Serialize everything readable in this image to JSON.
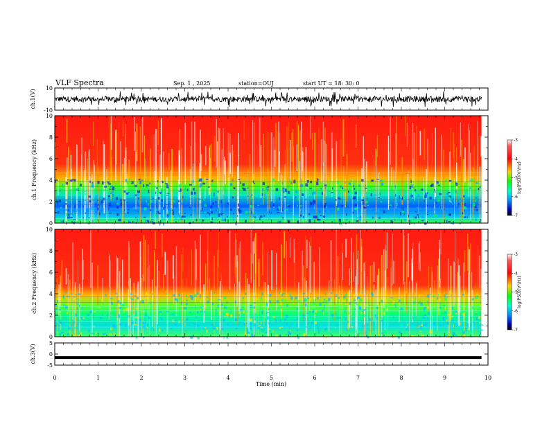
{
  "header": {
    "title": "VLF Spectra",
    "date": "Sep. 1 , 2025",
    "station": "station=OUJ",
    "start": "start UT = 18: 30: 0"
  },
  "chart_data": [
    {
      "id": "ch1-waveform",
      "type": "line",
      "ylabel": "ch.1(V)",
      "ylim": [
        -10,
        10
      ],
      "yticks": [
        "10",
        "-10"
      ]
    },
    {
      "id": "ch1-spectrogram",
      "type": "heatmap",
      "ylabel": "ch.1 Frequency (kHz)",
      "ylim": [
        0,
        10
      ],
      "yticks": [
        "0",
        "2",
        "4",
        "6",
        "8",
        "10"
      ],
      "colorbar": {
        "label": "log(PSD)(V²/Hz)",
        "ticks": [
          "-3",
          "-4",
          "-5",
          "-6",
          "-7"
        ],
        "range": [
          -7,
          -3
        ]
      }
    },
    {
      "id": "ch2-spectrogram",
      "type": "heatmap",
      "ylabel": "ch.2 Frequency (kHz)",
      "ylim": [
        0,
        10
      ],
      "yticks": [
        "0",
        "2",
        "4",
        "6",
        "8",
        "10"
      ],
      "colorbar": {
        "label": "log(PSD)(V²/Hz)",
        "ticks": [
          "-3",
          "-4",
          "-5",
          "-6",
          "-7"
        ],
        "range": [
          -7,
          -3
        ]
      }
    },
    {
      "id": "ch3-waveform",
      "type": "line",
      "ylabel": "ch.3(V)",
      "ylim": [
        -5,
        5
      ],
      "yticks": [
        "5",
        "0",
        "-5"
      ],
      "level": -1.6
    }
  ],
  "xaxis": {
    "label": "Time (min)",
    "range": [
      0,
      10
    ],
    "ticks": [
      "0",
      "1",
      "2",
      "3",
      "4",
      "5",
      "6",
      "7",
      "8",
      "9",
      "10"
    ],
    "data_end": 9.85
  },
  "colors": {
    "axis": "#000000",
    "heat_high": "#ff0000",
    "heat_mid": "#00ff00",
    "heat_low": "#0000ff"
  }
}
